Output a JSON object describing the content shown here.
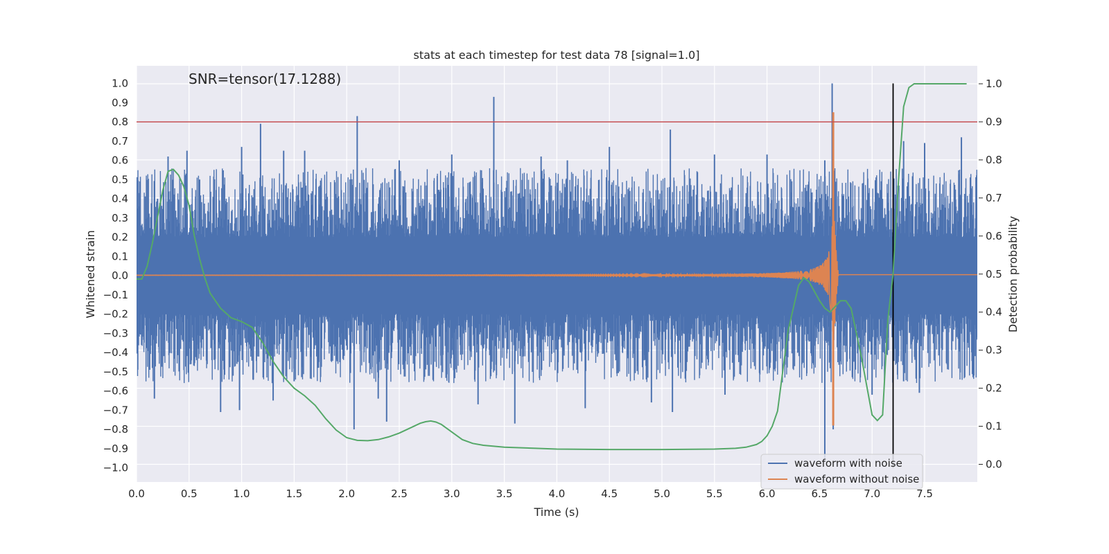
{
  "chart_data": {
    "type": "line",
    "title": "stats at each timestep for test data 78 [signal=1.0]",
    "annotation": "SNR=tensor(17.1288)",
    "xlabel": "Time (s)",
    "ylabel": "Whitened strain",
    "y2label": "Detection probability",
    "xlim": [
      0.0,
      8.0
    ],
    "ylim": [
      -1.1,
      1.1
    ],
    "y2lim": [
      -0.05,
      1.05
    ],
    "xticks": [
      0.0,
      0.5,
      1.0,
      1.5,
      2.0,
      2.5,
      3.0,
      3.5,
      4.0,
      4.5,
      5.0,
      5.5,
      6.0,
      6.5,
      7.0,
      7.5
    ],
    "xtick_labels": [
      "0.0",
      "0.5",
      "1.0",
      "1.5",
      "2.0",
      "2.5",
      "3.0",
      "3.5",
      "4.0",
      "4.5",
      "5.0",
      "5.5",
      "6.0",
      "6.5",
      "7.0",
      "7.5"
    ],
    "yticks": [
      1.0,
      0.9,
      0.8,
      0.7,
      0.6,
      0.5,
      0.4,
      0.3,
      0.2,
      0.1,
      0.0,
      -0.1,
      -0.2,
      -0.3,
      -0.4,
      -0.5,
      -0.6,
      -0.7,
      -0.8,
      -0.9,
      -1.0
    ],
    "ytick_labels": [
      "1.0",
      "0.9",
      "0.8",
      "0.7",
      "0.6",
      "0.5",
      "0.4",
      "0.3",
      "0.2",
      "0.1",
      "0.0",
      "−0.1",
      "−0.2",
      "−0.3",
      "−0.4",
      "−0.5",
      "−0.6",
      "−0.7",
      "−0.8",
      "−0.9",
      "−1.0"
    ],
    "y2ticks": [
      1.0,
      0.9,
      0.8,
      0.7,
      0.6,
      0.5,
      0.4,
      0.3,
      0.2,
      0.1,
      0.0
    ],
    "y2tick_labels": [
      "1.0",
      "0.9",
      "0.8",
      "0.7",
      "0.6",
      "0.5",
      "0.4",
      "0.3",
      "0.2",
      "0.1",
      "0.0"
    ],
    "grid": true,
    "legend_location": "lower right",
    "threshold_line": {
      "axis": "y",
      "value": 0.8,
      "color": "#c44e52"
    },
    "vertical_line": {
      "axis": "x",
      "value": 7.2,
      "color": "#000000"
    },
    "series": [
      {
        "name": "waveform with noise",
        "color": "#4c72b0",
        "envelope": {
          "typical_amplitude": 0.2,
          "peak_amplitude": 0.5
        },
        "spikes": [
          [
            0.02,
            0.36
          ],
          [
            0.2,
            0.4
          ],
          [
            0.3,
            0.62
          ],
          [
            0.48,
            0.65
          ],
          [
            0.6,
            0.5
          ],
          [
            1.0,
            0.67
          ],
          [
            1.18,
            0.79
          ],
          [
            1.4,
            0.65
          ],
          [
            1.6,
            0.65
          ],
          [
            2.1,
            0.83
          ],
          [
            2.5,
            0.6
          ],
          [
            3.0,
            0.63
          ],
          [
            3.4,
            0.93
          ],
          [
            3.85,
            0.62
          ],
          [
            4.1,
            0.6
          ],
          [
            4.5,
            0.67
          ],
          [
            5.08,
            0.76
          ],
          [
            5.5,
            0.63
          ],
          [
            6.0,
            0.63
          ],
          [
            6.55,
            0.6
          ],
          [
            6.62,
            1.0
          ],
          [
            7.3,
            0.7
          ],
          [
            7.5,
            0.69
          ],
          [
            7.85,
            0.72
          ],
          [
            0.17,
            -0.64
          ],
          [
            0.8,
            -0.71
          ],
          [
            0.98,
            -0.7
          ],
          [
            1.3,
            -0.65
          ],
          [
            1.5,
            -0.55
          ],
          [
            2.07,
            -0.8
          ],
          [
            2.3,
            -0.64
          ],
          [
            2.38,
            -0.76
          ],
          [
            3.25,
            -0.67
          ],
          [
            3.6,
            -0.77
          ],
          [
            4.27,
            -0.69
          ],
          [
            4.9,
            -0.66
          ],
          [
            5.1,
            -0.71
          ],
          [
            5.6,
            -0.62
          ],
          [
            6.55,
            -0.95
          ],
          [
            6.63,
            -0.8
          ],
          [
            7.0,
            -0.62
          ],
          [
            7.3,
            -0.55
          ],
          [
            7.45,
            -0.61
          ]
        ]
      },
      {
        "name": "waveform without noise",
        "color": "#dd8452",
        "description_points": {
          "merger_time": 6.64,
          "peak_positive": 0.85,
          "peak_negative": -0.78
        }
      },
      {
        "name": "",
        "color": "#55a868",
        "axis": "right",
        "x": [
          0.0,
          0.05,
          0.1,
          0.15,
          0.2,
          0.25,
          0.3,
          0.35,
          0.4,
          0.45,
          0.5,
          0.55,
          0.6,
          0.65,
          0.7,
          0.8,
          0.9,
          1.0,
          1.1,
          1.2,
          1.3,
          1.4,
          1.5,
          1.6,
          1.7,
          1.8,
          1.9,
          2.0,
          2.1,
          2.2,
          2.3,
          2.4,
          2.5,
          2.6,
          2.7,
          2.75,
          2.8,
          2.85,
          2.9,
          3.0,
          3.1,
          3.2,
          3.3,
          3.5,
          3.8,
          4.0,
          4.5,
          5.0,
          5.5,
          5.7,
          5.8,
          5.9,
          5.95,
          6.0,
          6.05,
          6.1,
          6.2,
          6.3,
          6.35,
          6.4,
          6.45,
          6.5,
          6.55,
          6.6,
          6.65,
          6.7,
          6.75,
          6.8,
          6.9,
          7.0,
          7.05,
          7.1,
          7.15,
          7.2,
          7.25,
          7.3,
          7.35,
          7.4,
          7.5,
          7.7,
          7.9
        ],
        "y": [
          0.487,
          0.487,
          0.52,
          0.58,
          0.65,
          0.72,
          0.77,
          0.775,
          0.76,
          0.73,
          0.68,
          0.6,
          0.54,
          0.49,
          0.45,
          0.41,
          0.385,
          0.375,
          0.36,
          0.32,
          0.27,
          0.23,
          0.2,
          0.18,
          0.155,
          0.12,
          0.09,
          0.07,
          0.063,
          0.062,
          0.065,
          0.072,
          0.082,
          0.095,
          0.108,
          0.112,
          0.114,
          0.111,
          0.105,
          0.085,
          0.065,
          0.055,
          0.05,
          0.045,
          0.042,
          0.04,
          0.039,
          0.039,
          0.04,
          0.042,
          0.045,
          0.052,
          0.06,
          0.075,
          0.1,
          0.14,
          0.35,
          0.47,
          0.49,
          0.48,
          0.455,
          0.43,
          0.41,
          0.4,
          0.415,
          0.43,
          0.43,
          0.41,
          0.28,
          0.13,
          0.115,
          0.13,
          0.38,
          0.5,
          0.74,
          0.94,
          0.99,
          1.0,
          1.0,
          1.0,
          1.0
        ]
      }
    ]
  }
}
